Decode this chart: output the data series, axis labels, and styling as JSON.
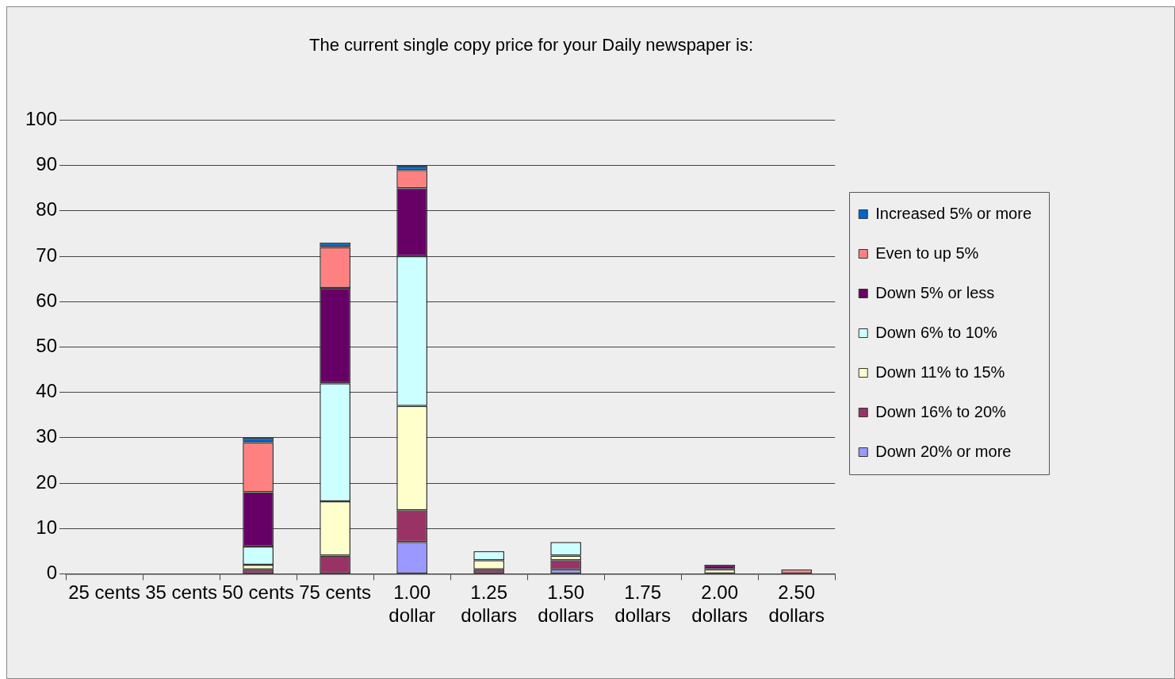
{
  "chart_data": {
    "type": "bar",
    "title": "The current single copy price for your Daily newspaper is:",
    "categories": [
      "25 cents",
      "35 cents",
      "50 cents",
      "75 cents",
      "1.00 dollar",
      "1.25 dollars",
      "1.50 dollars",
      "1.75 dollars",
      "2.00 dollars",
      "2.50 dollars"
    ],
    "stacked": true,
    "series": [
      {
        "name": "Down 20% or more",
        "color": "#9999ff",
        "values": [
          null,
          null,
          null,
          null,
          7,
          null,
          1,
          null,
          null,
          null
        ]
      },
      {
        "name": "Down 16% to 20%",
        "color": "#993366",
        "values": [
          null,
          null,
          1,
          4,
          7,
          1,
          2,
          null,
          null,
          null
        ]
      },
      {
        "name": "Down 11% to 15%",
        "color": "#ffffcc",
        "values": [
          null,
          null,
          1,
          12,
          23,
          2,
          1,
          null,
          1,
          null
        ]
      },
      {
        "name": "Down 6% to 10%",
        "color": "#ccffff",
        "values": [
          null,
          null,
          4,
          26,
          33,
          2,
          3,
          null,
          null,
          null
        ]
      },
      {
        "name": "Down 5% or less",
        "color": "#660066",
        "values": [
          null,
          null,
          12,
          21,
          15,
          null,
          null,
          null,
          1,
          null
        ]
      },
      {
        "name": "Even to up 5%",
        "color": "#ff8080",
        "values": [
          null,
          null,
          11,
          9,
          4,
          null,
          null,
          null,
          null,
          1
        ]
      },
      {
        "name": "Increased 5% or more",
        "color": "#0066cc",
        "values": [
          null,
          null,
          1,
          1,
          1,
          null,
          null,
          null,
          null,
          null
        ]
      }
    ],
    "ylim": [
      0,
      100
    ],
    "yticks": [
      0,
      10,
      20,
      30,
      40,
      50,
      60,
      70,
      80,
      90,
      100
    ],
    "grid": "y",
    "legend": "right"
  }
}
